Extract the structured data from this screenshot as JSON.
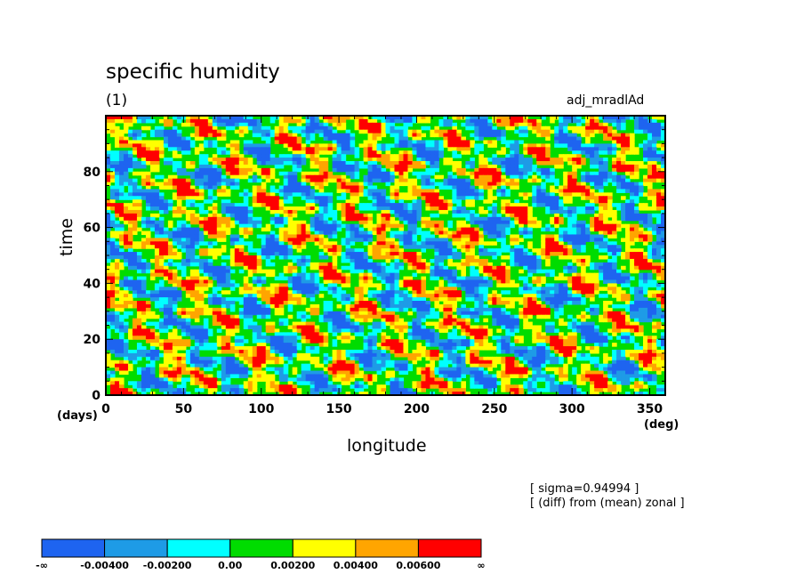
{
  "chart_data": {
    "type": "heatmap",
    "title": "specific humidity",
    "subtitle": "(1)",
    "run_label": "adj_mradlAd",
    "xlabel": "longitude",
    "ylabel": "time",
    "x_unit": "(deg)",
    "y_unit": "(days)",
    "xlim": [
      0,
      360
    ],
    "ylim": [
      0,
      100
    ],
    "x_ticks": [
      "0",
      "50",
      "100",
      "150",
      "200",
      "250",
      "300",
      "350"
    ],
    "y_ticks": [
      "0",
      "20",
      "40",
      "60",
      "80"
    ],
    "annotations": [
      "[ sigma=0.94994 ]",
      "[ (diff) from (mean) zonal ]"
    ],
    "colorbar": {
      "labels": [
        "-∞",
        "-0.00400",
        "-0.00200",
        "0.00",
        "0.00200",
        "0.00400",
        "0.00600",
        "∞"
      ],
      "colors": [
        "#1e64f0",
        "#1e9be6",
        "#00ffff",
        "#00dc00",
        "#ffff00",
        "#ffa500",
        "#ff0000"
      ]
    }
  }
}
